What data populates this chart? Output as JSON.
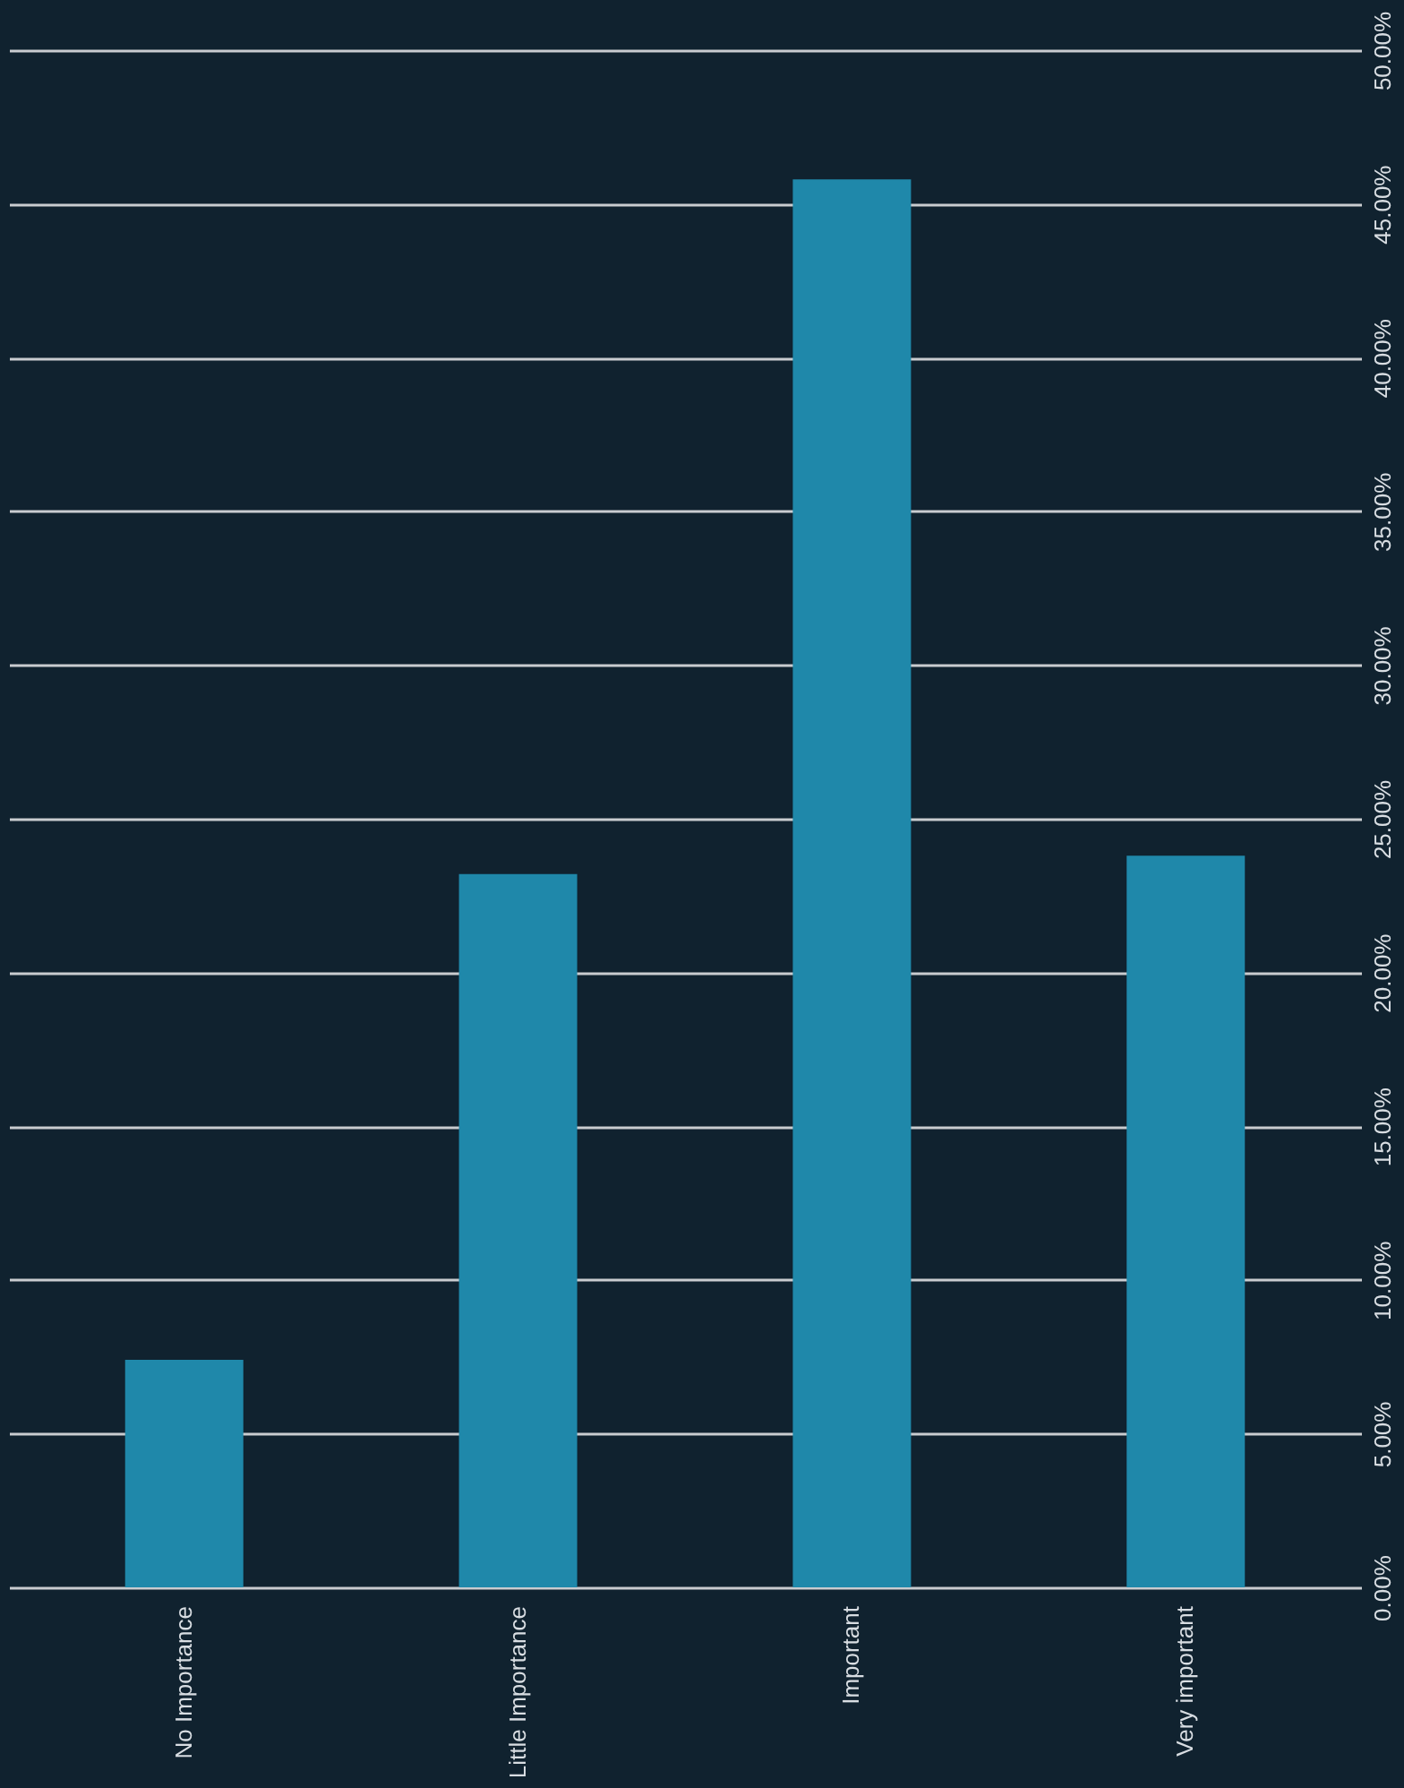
{
  "chart_data": {
    "type": "bar",
    "categories": [
      "No Importance",
      "Little Importance",
      "Important",
      "Very important"
    ],
    "values": [
      7.4,
      23.2,
      45.8,
      23.8
    ],
    "color": "#1f88aa",
    "ylim": [
      0,
      50
    ],
    "yticks": [
      {
        "value": 0,
        "label": "0.00%"
      },
      {
        "value": 5,
        "label": "5.00%"
      },
      {
        "value": 10,
        "label": "10.00%"
      },
      {
        "value": 15,
        "label": "15.00%"
      },
      {
        "value": 20,
        "label": "20.00%"
      },
      {
        "value": 25,
        "label": "25.00%"
      },
      {
        "value": 30,
        "label": "30.00%"
      },
      {
        "value": 35,
        "label": "35.00%"
      },
      {
        "value": 40,
        "label": "40.00%"
      },
      {
        "value": 45,
        "label": "45.00%"
      },
      {
        "value": 50,
        "label": "50.00%"
      }
    ],
    "grid": "y"
  }
}
